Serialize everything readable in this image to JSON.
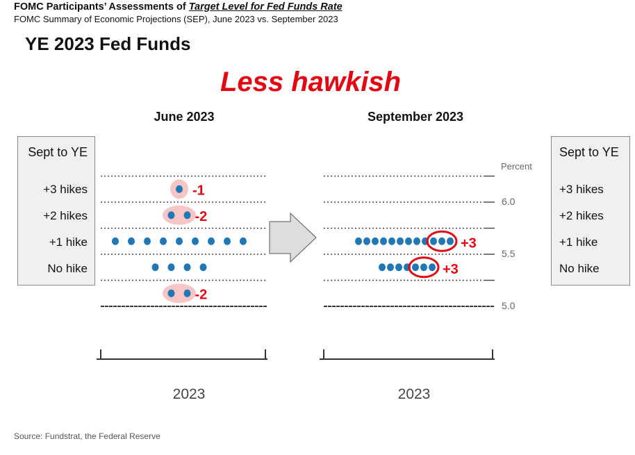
{
  "header": {
    "title_prefix": "FOMC Participants’ Assessments of ",
    "title_emphasis": "Target Level for Fed Funds Rate",
    "subtitle": "FOMC Summary of Economic Projections (SEP), June 2023 vs. September 2023"
  },
  "main_title": "YE 2023 Fed Funds",
  "callout": "Less hawkish",
  "colors": {
    "dot": "#1f77b4",
    "highlight": "#f6c6c6",
    "accent": "#e30613",
    "arrow": "#dddddd"
  },
  "left_box": {
    "header": "Sept to YE",
    "rows": [
      "+3 hikes",
      "+2 hikes",
      "+1 hike",
      "No hike"
    ]
  },
  "right_box": {
    "header": "Sept to YE",
    "rows": [
      "+3 hikes",
      "+2 hikes",
      "+1 hike",
      "No hike"
    ]
  },
  "source": "Source: Fundstrat, the Federal Reserve",
  "chart_data": [
    {
      "type": "scatter",
      "title": "June 2023",
      "x": [
        "2023"
      ],
      "series": [
        {
          "x": "2023",
          "rates": [
            6.125,
            5.875,
            5.625,
            5.375,
            5.125
          ],
          "counts": [
            1,
            2,
            9,
            4,
            2
          ]
        }
      ],
      "annotations": [
        {
          "rate": 6.125,
          "label": "-1"
        },
        {
          "rate": 5.875,
          "label": "-2"
        },
        {
          "rate": 5.125,
          "label": "-2"
        }
      ],
      "tick_labels": [
        "2023"
      ]
    },
    {
      "type": "scatter",
      "title": "September 2023",
      "x": [
        "2023"
      ],
      "series": [
        {
          "x": "2023",
          "rates": [
            5.625,
            5.375
          ],
          "counts": [
            12,
            7
          ]
        }
      ],
      "annotations": [
        {
          "rate": 5.625,
          "label": "+3"
        },
        {
          "rate": 5.375,
          "label": "+3"
        }
      ],
      "ylabel": "Percent",
      "y_ticks": [
        "6.0",
        "5.5",
        "5.0"
      ],
      "tick_labels": [
        "2023"
      ]
    }
  ]
}
